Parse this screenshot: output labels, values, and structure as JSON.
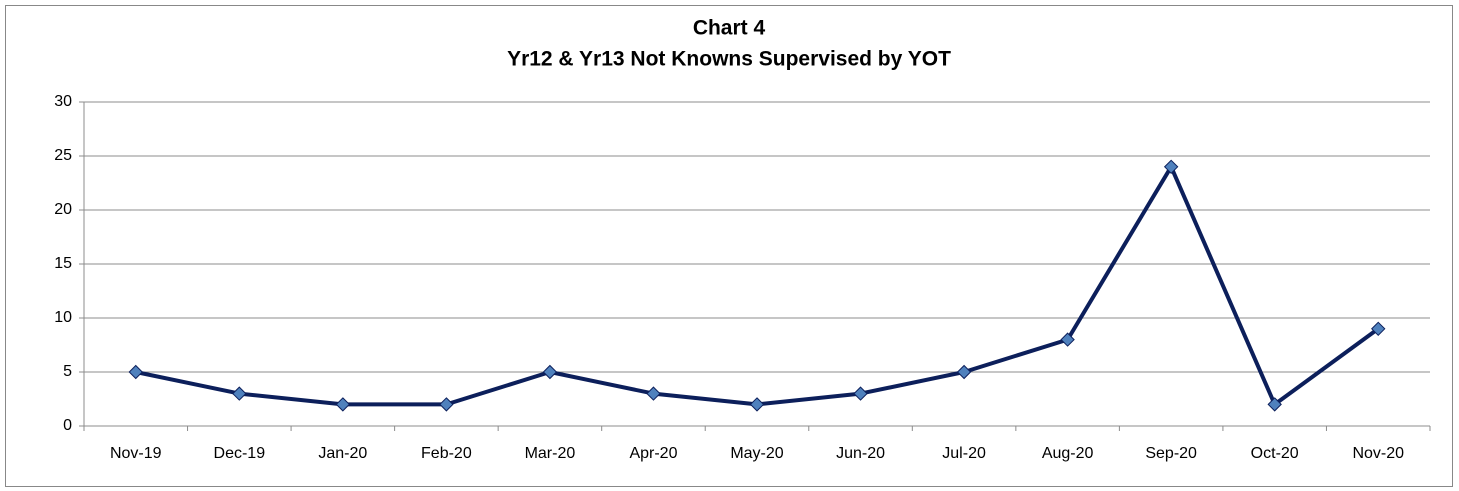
{
  "chart_data": {
    "type": "line",
    "title": "Chart 4",
    "subtitle": "Yr12 & Yr13 Not Knowns Supervised by YOT",
    "categories": [
      "Nov-19",
      "Dec-19",
      "Jan-20",
      "Feb-20",
      "Mar-20",
      "Apr-20",
      "May-20",
      "Jun-20",
      "Jul-20",
      "Aug-20",
      "Sep-20",
      "Oct-20",
      "Nov-20"
    ],
    "values": [
      5,
      3,
      2,
      2,
      5,
      3,
      2,
      3,
      5,
      8,
      24,
      2,
      9
    ],
    "color": "#0c1f5b",
    "marker_color": "#4f81bd",
    "ylim": [
      0,
      30
    ],
    "yticks": [
      0,
      5,
      10,
      15,
      20,
      25,
      30
    ],
    "grid": true
  }
}
